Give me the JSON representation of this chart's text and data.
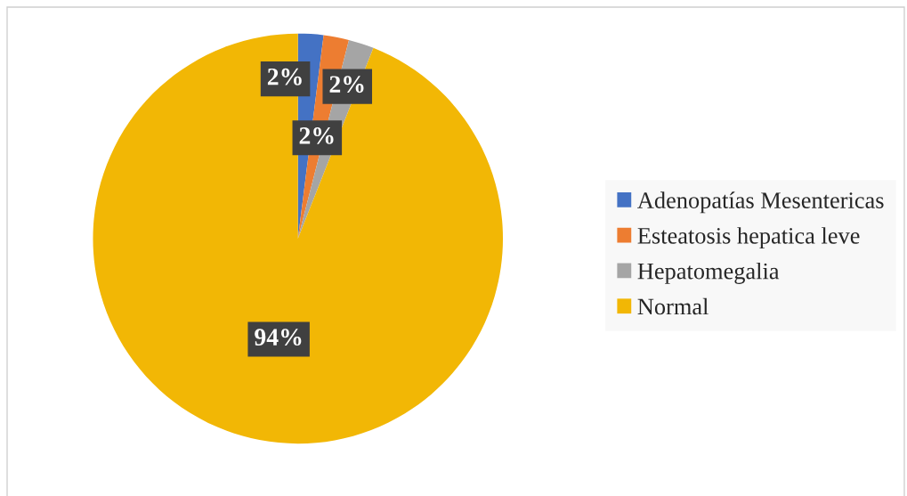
{
  "chart_data": {
    "type": "pie",
    "categories": [
      "Adenopatías Mesentericas",
      "Esteatosis hepatica leve",
      "Hepatomegalia",
      "Normal"
    ],
    "values": [
      2,
      2,
      2,
      94
    ],
    "colors": [
      "#4472c4",
      "#ed7d31",
      "#a5a5a5",
      "#f2b705"
    ],
    "value_labels": [
      "2%",
      "2%",
      "2%",
      "94%"
    ],
    "legend": "right"
  }
}
